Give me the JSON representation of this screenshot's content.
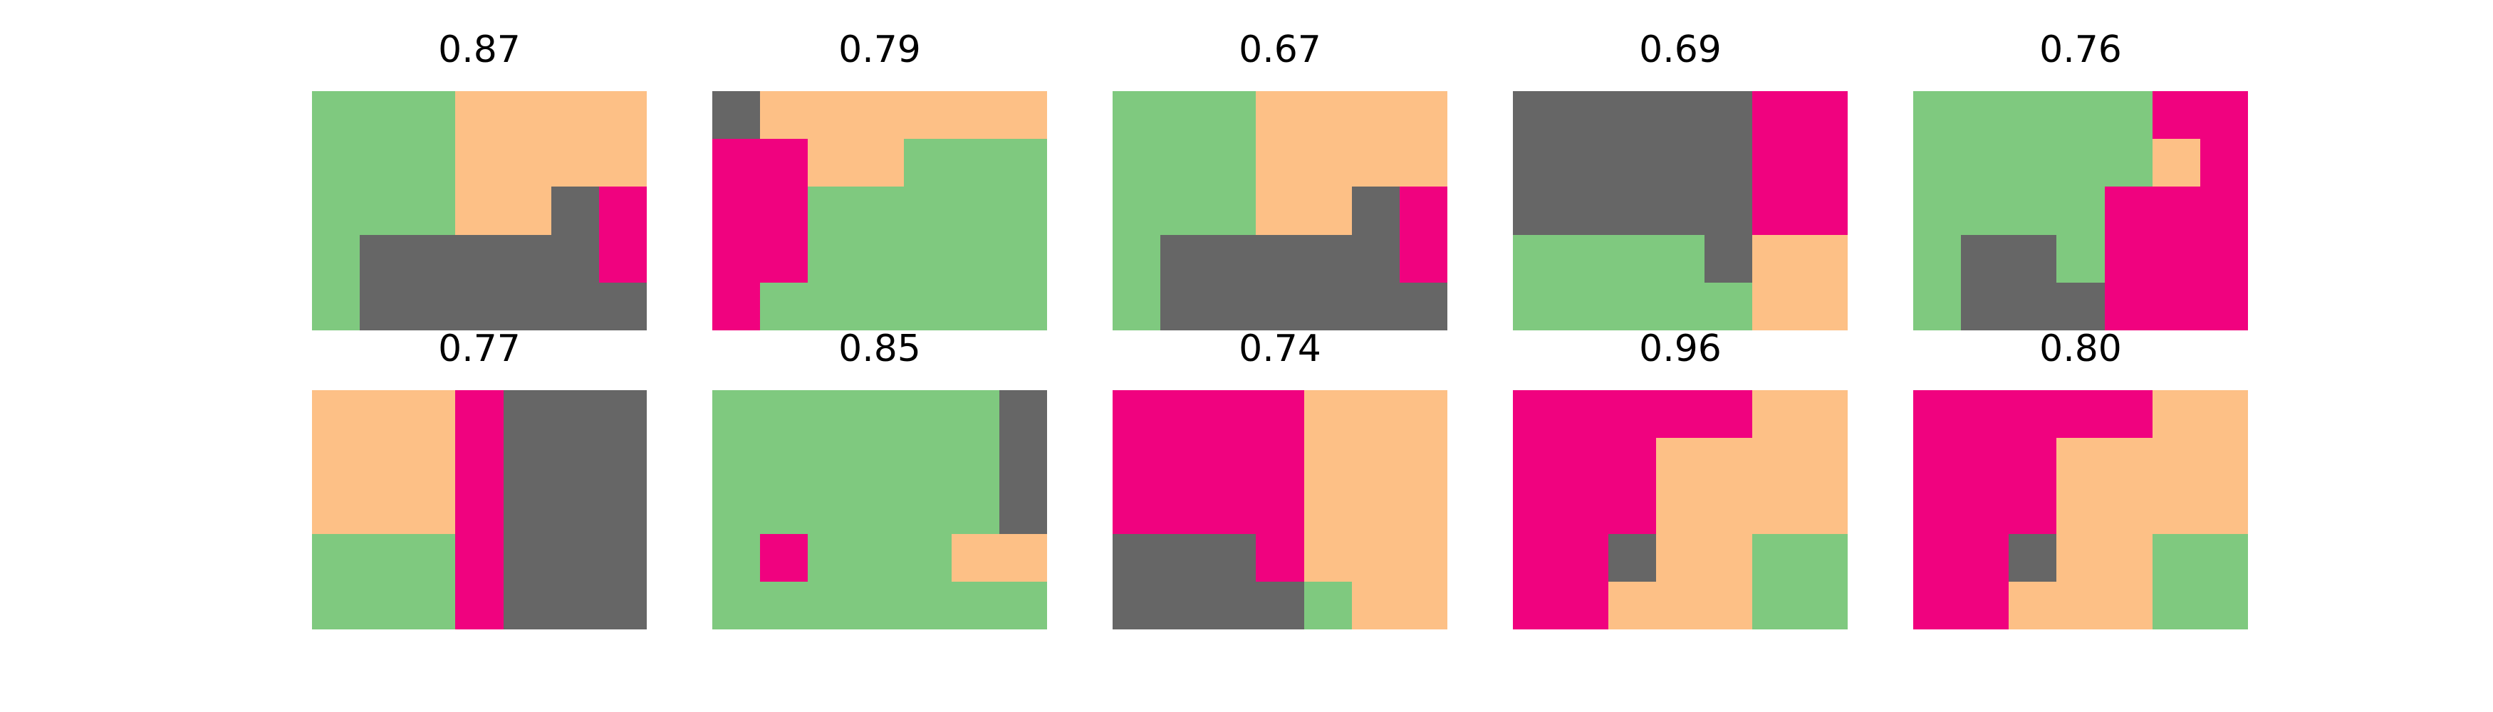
{
  "palette": {
    "0": "#7fc97f",
    "1": "#fdc086",
    "2": "#666666",
    "3": "#f0027f"
  },
  "panels": [
    {
      "score": "0.87",
      "grid": [
        [
          0,
          0,
          0,
          1,
          1,
          1,
          1
        ],
        [
          0,
          0,
          0,
          1,
          1,
          1,
          1
        ],
        [
          0,
          0,
          0,
          1,
          1,
          2,
          3
        ],
        [
          0,
          2,
          2,
          2,
          2,
          2,
          3
        ],
        [
          0,
          2,
          2,
          2,
          2,
          2,
          2
        ]
      ]
    },
    {
      "score": "0.79",
      "grid": [
        [
          2,
          1,
          1,
          1,
          1,
          1,
          1
        ],
        [
          3,
          3,
          1,
          1,
          0,
          0,
          0
        ],
        [
          3,
          3,
          0,
          0,
          0,
          0,
          0
        ],
        [
          3,
          3,
          0,
          0,
          0,
          0,
          0
        ],
        [
          3,
          0,
          0,
          0,
          0,
          0,
          0
        ]
      ]
    },
    {
      "score": "0.67",
      "grid": [
        [
          0,
          0,
          0,
          1,
          1,
          1,
          1
        ],
        [
          0,
          0,
          0,
          1,
          1,
          1,
          1
        ],
        [
          0,
          0,
          0,
          1,
          1,
          2,
          3
        ],
        [
          0,
          2,
          2,
          2,
          2,
          2,
          3
        ],
        [
          0,
          2,
          2,
          2,
          2,
          2,
          2
        ]
      ]
    },
    {
      "score": "0.69",
      "grid": [
        [
          2,
          2,
          2,
          2,
          2,
          3,
          3
        ],
        [
          2,
          2,
          2,
          2,
          2,
          3,
          3
        ],
        [
          2,
          2,
          2,
          2,
          2,
          3,
          3
        ],
        [
          0,
          0,
          0,
          0,
          2,
          1,
          1
        ],
        [
          0,
          0,
          0,
          0,
          0,
          1,
          1
        ]
      ]
    },
    {
      "score": "0.76",
      "grid": [
        [
          0,
          0,
          0,
          0,
          0,
          3,
          3
        ],
        [
          0,
          0,
          0,
          0,
          0,
          1,
          3
        ],
        [
          0,
          0,
          0,
          0,
          3,
          3,
          3
        ],
        [
          0,
          2,
          2,
          0,
          3,
          3,
          3
        ],
        [
          0,
          2,
          2,
          2,
          3,
          3,
          3
        ]
      ]
    },
    {
      "score": "0.77",
      "grid": [
        [
          1,
          1,
          1,
          3,
          2,
          2,
          2
        ],
        [
          1,
          1,
          1,
          3,
          2,
          2,
          2
        ],
        [
          1,
          1,
          1,
          3,
          2,
          2,
          2
        ],
        [
          0,
          0,
          0,
          3,
          2,
          2,
          2
        ],
        [
          0,
          0,
          0,
          3,
          2,
          2,
          2
        ]
      ]
    },
    {
      "score": "0.85",
      "grid": [
        [
          0,
          0,
          0,
          0,
          0,
          0,
          2
        ],
        [
          0,
          0,
          0,
          0,
          0,
          0,
          2
        ],
        [
          0,
          0,
          0,
          0,
          0,
          0,
          2
        ],
        [
          0,
          3,
          0,
          0,
          0,
          1,
          1
        ],
        [
          0,
          0,
          0,
          0,
          0,
          0,
          0
        ]
      ]
    },
    {
      "score": "0.74",
      "grid": [
        [
          3,
          3,
          3,
          3,
          1,
          1,
          1
        ],
        [
          3,
          3,
          3,
          3,
          1,
          1,
          1
        ],
        [
          3,
          3,
          3,
          3,
          1,
          1,
          1
        ],
        [
          2,
          2,
          2,
          3,
          1,
          1,
          1
        ],
        [
          2,
          2,
          2,
          2,
          0,
          1,
          1
        ]
      ]
    },
    {
      "score": "0.96",
      "grid": [
        [
          3,
          3,
          3,
          3,
          3,
          1,
          1
        ],
        [
          3,
          3,
          3,
          1,
          1,
          1,
          1
        ],
        [
          3,
          3,
          3,
          1,
          1,
          1,
          1
        ],
        [
          3,
          3,
          2,
          1,
          1,
          0,
          0
        ],
        [
          3,
          3,
          1,
          1,
          1,
          0,
          0
        ]
      ]
    },
    {
      "score": "0.80",
      "grid": [
        [
          3,
          3,
          3,
          3,
          3,
          1,
          1
        ],
        [
          3,
          3,
          3,
          1,
          1,
          1,
          1
        ],
        [
          3,
          3,
          3,
          1,
          1,
          1,
          1
        ],
        [
          3,
          3,
          2,
          1,
          1,
          0,
          0
        ],
        [
          3,
          3,
          1,
          1,
          1,
          0,
          0
        ]
      ]
    }
  ]
}
